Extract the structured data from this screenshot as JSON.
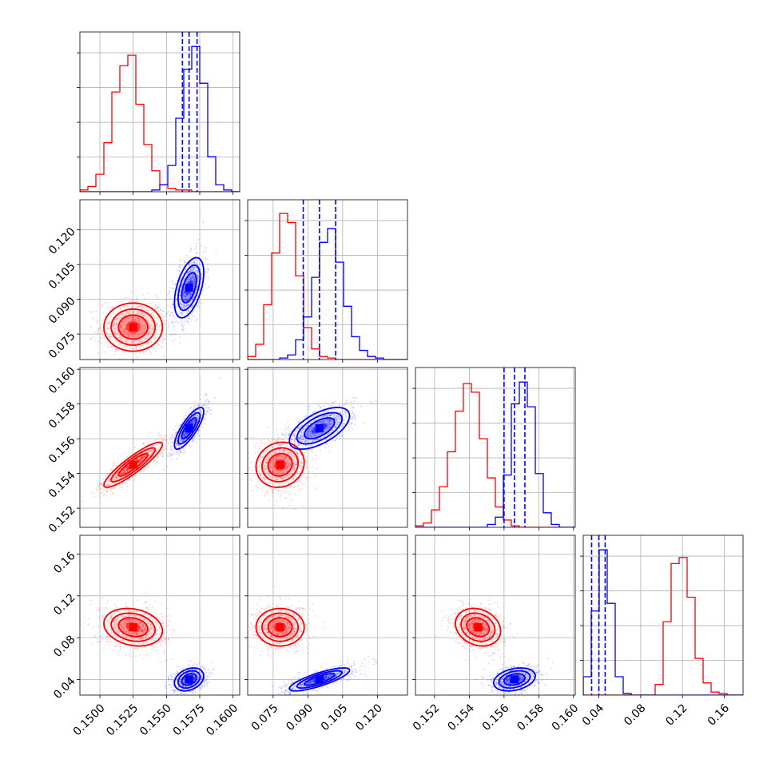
{
  "chart_data": {
    "type": "corner",
    "title": "",
    "n_params": 4,
    "colors": {
      "series_a": "#ff0000",
      "series_b": "#0000ff",
      "grid": "#b0b0b0",
      "frame": "#000000"
    },
    "series": [
      {
        "color": "#ff0000",
        "quantile_lines": false,
        "mean": [
          0.1525,
          0.078,
          0.1545,
          0.09
        ],
        "sd": [
          0.0011,
          0.0052,
          0.00065,
          0.009
        ],
        "contour_rho": [
          [
            null
          ],
          [
            0.0,
            null
          ],
          [
            0.9,
            0.1,
            null
          ],
          [
            -0.2,
            0.0,
            -0.2,
            null
          ]
        ]
      },
      {
        "color": "#0000ff",
        "quantile_lines": true,
        "quantiles": [
          [
            0.1562,
            0.1567,
            0.1573
          ],
          [
            0.088,
            0.095,
            0.102
          ],
          [
            0.156,
            0.1566,
            0.1572
          ],
          [
            0.033,
            0.04,
            0.046
          ]
        ],
        "mean": [
          0.1567,
          0.095,
          0.1566,
          0.04
        ],
        "sd": [
          0.00055,
          0.0065,
          0.0006,
          0.0055
        ],
        "contour_rho": [
          [
            null
          ],
          [
            0.5,
            null
          ],
          [
            0.8,
            0.6,
            null
          ],
          [
            0.3,
            0.8,
            0.3,
            null
          ]
        ]
      }
    ],
    "axes": [
      {
        "range": [
          0.1485,
          0.1605
        ],
        "ticks": [
          0.15,
          0.1525,
          0.155,
          0.1575,
          0.16
        ],
        "tick_labels": [
          "0.1500",
          "0.1525",
          "0.1550",
          "0.1575",
          "0.1600"
        ]
      },
      {
        "range": [
          0.064,
          0.133
        ],
        "ticks": [
          0.075,
          0.09,
          0.105,
          0.12
        ],
        "tick_labels": [
          "0.075",
          "0.090",
          "0.105",
          "0.120"
        ]
      },
      {
        "range": [
          0.1509,
          0.1601
        ],
        "ticks": [
          0.152,
          0.154,
          0.156,
          0.158,
          0.16
        ],
        "tick_labels": [
          "0.152",
          "0.154",
          "0.156",
          "0.158",
          "0.160"
        ]
      },
      {
        "range": [
          0.025,
          0.178
        ],
        "ticks": [
          0.04,
          0.08,
          0.12,
          0.16
        ],
        "tick_labels": [
          "0.04",
          "0.08",
          "0.12",
          "0.16"
        ]
      }
    ],
    "histograms": [
      {
        "red": [
          1,
          3,
          10,
          28,
          57,
          72,
          78,
          50,
          27,
          12,
          4,
          2,
          1,
          1,
          0,
          0,
          0,
          0,
          0,
          0
        ],
        "blue": [
          0,
          0,
          0,
          0,
          0,
          0,
          0,
          0,
          0,
          1,
          4,
          15,
          42,
          70,
          83,
          62,
          20,
          4,
          1,
          0
        ]
      },
      {
        "red": [
          2,
          10,
          36,
          70,
          96,
          90,
          55,
          21,
          7,
          2,
          1,
          0,
          0,
          0,
          0,
          0,
          0,
          0,
          0,
          0
        ],
        "blue": [
          0,
          0,
          0,
          0,
          1,
          3,
          13,
          28,
          54,
          77,
          86,
          64,
          35,
          15,
          6,
          2,
          1,
          0,
          0,
          0
        ],
        "ylim": [
          0,
          105
        ]
      },
      {
        "red": [
          1,
          3,
          12,
          28,
          52,
          80,
          99,
          93,
          61,
          34,
          14,
          5,
          1,
          0,
          0,
          0,
          0,
          0,
          0,
          0
        ],
        "blue": [
          0,
          0,
          0,
          0,
          0,
          0,
          0,
          0,
          0,
          2,
          7,
          36,
          85,
          100,
          83,
          37,
          10,
          2,
          0,
          0
        ],
        "ylim": [
          0,
          110
        ]
      },
      {
        "red": [
          0,
          0,
          0,
          0,
          0,
          0,
          0,
          0,
          0,
          7,
          48,
          86,
          90,
          64,
          24,
          8,
          2,
          1,
          0,
          0
        ],
        "blue": [
          12,
          55,
          95,
          60,
          12,
          1,
          0,
          0,
          0,
          0,
          0,
          0,
          0,
          0,
          0,
          0,
          0,
          0,
          0,
          0
        ]
      }
    ]
  }
}
